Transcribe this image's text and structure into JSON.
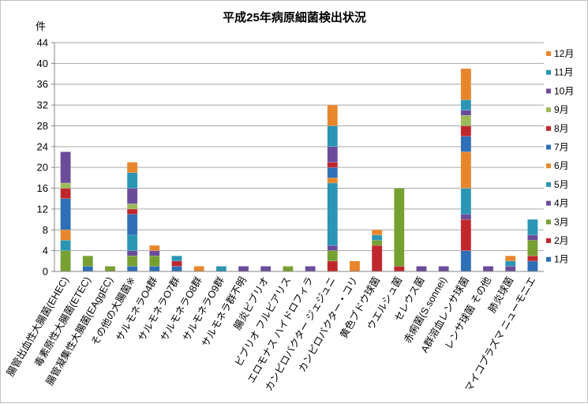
{
  "chart_data": {
    "type": "bar",
    "stacked": true,
    "title": "平成25年病原細菌検出状況",
    "ylabel": "件",
    "ylim": [
      0,
      44
    ],
    "yticks": [
      0,
      4,
      8,
      12,
      16,
      20,
      24,
      28,
      32,
      36,
      40,
      44
    ],
    "grid": true,
    "legend_position": "right",
    "categories": [
      "腸管出血性大腸菌(EHEC)",
      "毒素原性大腸菌(ETEC)",
      "腸管凝集性大腸菌(EAggEC)",
      "その他の大腸菌※",
      "サルモネラO4群",
      "サルモネラO7群",
      "サルモネラO8群",
      "サルモネラO9群",
      "サルモネラ群不明",
      "腸炎ビブリオ",
      "ビブリオ フルビアリス",
      "エロモナス ハイドロフィラ",
      "カンピロバクター ジェジュニ",
      "カンピロバクター・コリ",
      "黄色ブドウ球菌",
      "ウエルシュ菌",
      "セレウス菌",
      "赤痢菌(S.sonnei)",
      "A群溶血レンサ球菌",
      "レンサ球菌 その他",
      "肺炎球菌",
      "マイコプラズマ ニューモニエ"
    ],
    "series": [
      {
        "name": "1月",
        "color": "#2e6fb7",
        "values": [
          0,
          1,
          0,
          1,
          1,
          1,
          0,
          0,
          0,
          0,
          0,
          0,
          0,
          0,
          0,
          0,
          0,
          0,
          4,
          0,
          0,
          2
        ]
      },
      {
        "name": "2月",
        "color": "#c0272d",
        "values": [
          0,
          0,
          0,
          0,
          0,
          1,
          0,
          0,
          0,
          0,
          0,
          0,
          2,
          0,
          5,
          1,
          0,
          0,
          6,
          0,
          0,
          1
        ]
      },
      {
        "name": "3月",
        "color": "#77a033",
        "values": [
          4,
          2,
          1,
          2,
          2,
          0,
          0,
          0,
          0,
          0,
          1,
          0,
          2,
          0,
          1,
          15,
          0,
          0,
          0,
          0,
          0,
          3
        ]
      },
      {
        "name": "4月",
        "color": "#6b4c9a",
        "values": [
          0,
          0,
          0,
          1,
          1,
          0,
          0,
          0,
          1,
          1,
          0,
          1,
          1,
          0,
          0,
          0,
          1,
          1,
          1,
          1,
          1,
          1
        ]
      },
      {
        "name": "5月",
        "color": "#2b95b4",
        "values": [
          2,
          0,
          0,
          3,
          0,
          1,
          0,
          1,
          0,
          0,
          0,
          0,
          12,
          0,
          1,
          0,
          0,
          0,
          5,
          0,
          1,
          0
        ]
      },
      {
        "name": "6月",
        "color": "#e8862c",
        "values": [
          2,
          0,
          0,
          0,
          0,
          0,
          1,
          0,
          0,
          0,
          0,
          0,
          1,
          2,
          1,
          0,
          0,
          0,
          7,
          0,
          1,
          0
        ]
      },
      {
        "name": "7月",
        "color": "#2e6fb7",
        "values": [
          6,
          0,
          0,
          4,
          0,
          0,
          0,
          0,
          0,
          0,
          0,
          0,
          2,
          0,
          0,
          0,
          0,
          0,
          3,
          0,
          0,
          0
        ]
      },
      {
        "name": "8月",
        "color": "#c0272d",
        "values": [
          2,
          0,
          0,
          1,
          0,
          0,
          0,
          0,
          0,
          0,
          0,
          0,
          1,
          0,
          0,
          0,
          0,
          0,
          2,
          0,
          0,
          0
        ]
      },
      {
        "name": "9月",
        "color": "#9bbb59",
        "values": [
          1,
          0,
          0,
          1,
          0,
          0,
          0,
          0,
          0,
          0,
          0,
          0,
          0,
          0,
          0,
          0,
          0,
          0,
          2,
          0,
          0,
          0
        ]
      },
      {
        "name": "10月",
        "color": "#6b4c9a",
        "values": [
          6,
          0,
          0,
          3,
          0,
          0,
          0,
          0,
          0,
          0,
          0,
          0,
          3,
          0,
          0,
          0,
          0,
          0,
          1,
          0,
          0,
          0
        ]
      },
      {
        "name": "11月",
        "color": "#2b95b4",
        "values": [
          0,
          0,
          0,
          3,
          0,
          0,
          0,
          0,
          0,
          0,
          0,
          0,
          4,
          0,
          0,
          0,
          0,
          0,
          2,
          0,
          0,
          3
        ]
      },
      {
        "name": "12月",
        "color": "#e8862c",
        "values": [
          0,
          0,
          0,
          2,
          1,
          0,
          0,
          0,
          0,
          0,
          0,
          0,
          4,
          0,
          0,
          0,
          0,
          0,
          6,
          0,
          0,
          0
        ]
      }
    ]
  }
}
